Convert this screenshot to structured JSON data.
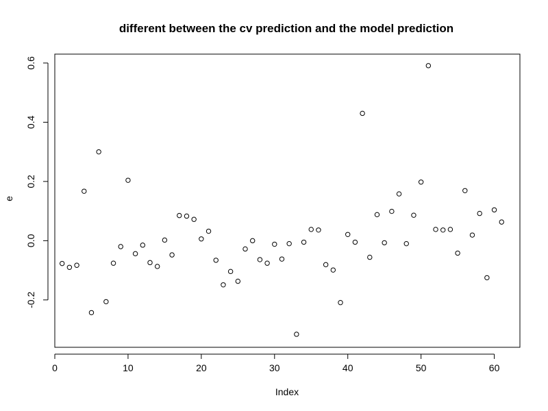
{
  "chart_data": {
    "type": "scatter",
    "title": "different between the cv prediction and the model prediction",
    "xlabel": "Index",
    "ylabel": "e",
    "xlim": [
      0,
      63.5
    ],
    "ylim": [
      -0.36,
      0.63
    ],
    "xticks": [
      0,
      10,
      20,
      30,
      40,
      50,
      60
    ],
    "xtick_labels": [
      "0",
      "10",
      "20",
      "30",
      "40",
      "50",
      "60"
    ],
    "yticks": [
      -0.2,
      0.0,
      0.2,
      0.4,
      0.6
    ],
    "ytick_labels": [
      "-0.2",
      "0.0",
      "0.2",
      "0.4",
      "0.6"
    ],
    "grid": false,
    "legend": "none",
    "marker": "open-circle",
    "marker_color": "#000000",
    "x": [
      1,
      2,
      3,
      4,
      5,
      6,
      7,
      8,
      9,
      10,
      11,
      12,
      13,
      14,
      15,
      16,
      17,
      18,
      19,
      20,
      21,
      22,
      23,
      24,
      25,
      26,
      27,
      28,
      29,
      30,
      31,
      32,
      33,
      34,
      35,
      36,
      37,
      38,
      39,
      40,
      41,
      42,
      43,
      44,
      45,
      46,
      47,
      48,
      49,
      50,
      51,
      52,
      53,
      54,
      55,
      56,
      57,
      58,
      59,
      60,
      61
    ],
    "y": [
      -0.077,
      -0.09,
      -0.083,
      0.167,
      -0.243,
      0.3,
      -0.206,
      -0.076,
      -0.02,
      0.204,
      -0.044,
      -0.015,
      -0.074,
      -0.087,
      0.002,
      -0.048,
      0.085,
      0.083,
      0.072,
      0.006,
      0.032,
      -0.066,
      -0.149,
      -0.104,
      -0.137,
      -0.028,
      0.0,
      -0.064,
      -0.076,
      -0.012,
      -0.062,
      -0.01,
      -0.316,
      -0.005,
      0.038,
      0.036,
      -0.081,
      -0.099,
      -0.209,
      0.021,
      -0.005,
      0.43,
      -0.056,
      0.088,
      -0.007,
      0.099,
      0.158,
      -0.01,
      0.086,
      0.198,
      0.591,
      0.038,
      0.036,
      0.038,
      -0.042,
      0.169,
      0.019,
      0.092,
      -0.125,
      0.104,
      0.063
    ]
  }
}
